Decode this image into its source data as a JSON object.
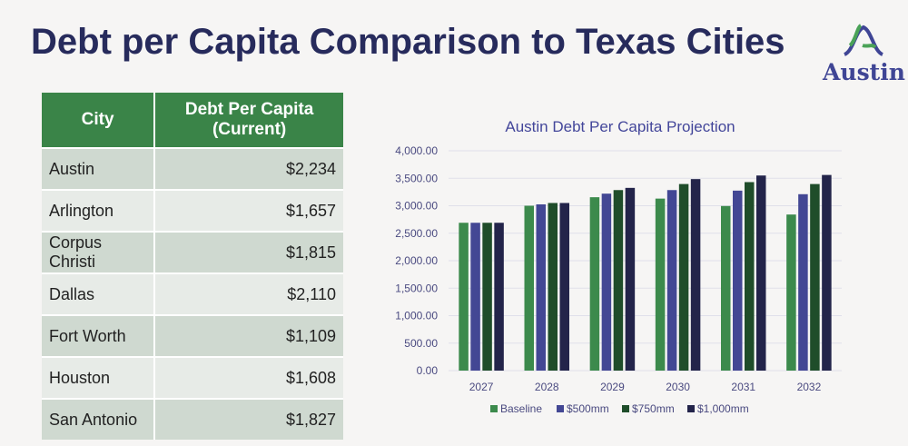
{
  "title": "Debt per Capita Comparison to Texas Cities",
  "logo": {
    "text": "Austin"
  },
  "table": {
    "headers": [
      "City",
      "Debt Per Capita (Current)"
    ],
    "rows": [
      [
        "Austin",
        "$2,234"
      ],
      [
        "Arlington",
        "$1,657"
      ],
      [
        "Corpus Christi",
        "$1,815"
      ],
      [
        "Dallas",
        "$2,110"
      ],
      [
        "Fort Worth",
        "$1,109"
      ],
      [
        "Houston",
        "$1,608"
      ],
      [
        "San Antonio",
        "$1,827"
      ]
    ]
  },
  "chart_data": {
    "type": "bar",
    "title": "Austin Debt Per Capita Projection",
    "categories": [
      "2027",
      "2028",
      "2029",
      "2030",
      "2031",
      "2032"
    ],
    "ylim": [
      0,
      4000
    ],
    "yticks": [
      "0.00",
      "500.00",
      "1,000.00",
      "1,500.00",
      "2,000.00",
      "2,500.00",
      "3,000.00",
      "3,500.00",
      "4,000.00"
    ],
    "grid": true,
    "legend": "bottom",
    "series": [
      {
        "name": "Baseline",
        "color": "#3c8a4c",
        "values": [
          2690,
          3000,
          3155,
          3130,
          2995,
          2840
        ]
      },
      {
        "name": "$500mm",
        "color": "#434794",
        "values": [
          2690,
          3025,
          3220,
          3285,
          3275,
          3210
        ]
      },
      {
        "name": "$750mm",
        "color": "#1f4d2a",
        "values": [
          2690,
          3050,
          3285,
          3395,
          3430,
          3395
        ]
      },
      {
        "name": "$1,000mm",
        "color": "#23244a",
        "values": [
          2690,
          3050,
          3325,
          3485,
          3550,
          3560
        ]
      }
    ]
  }
}
